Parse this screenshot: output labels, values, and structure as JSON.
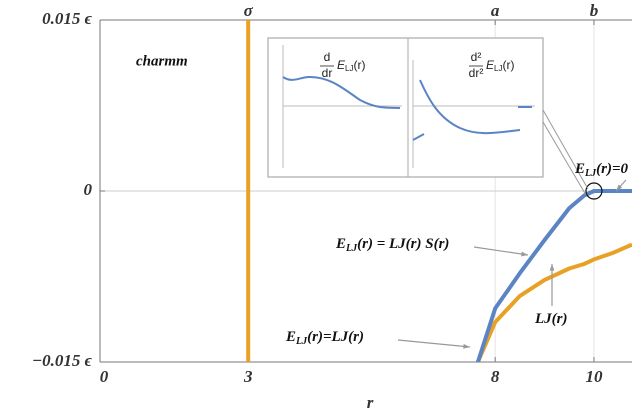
{
  "chart_data": {
    "type": "line",
    "x_label": "r",
    "xlim": [
      0,
      10.77
    ],
    "ylim": [
      -0.015,
      0.015
    ],
    "xticks": [
      0,
      3,
      8,
      10
    ],
    "yticks": [
      {
        "value": -0.015,
        "label": "−0.015 ϵ"
      },
      0,
      {
        "value": 0.015,
        "label": "0.015 ϵ"
      }
    ],
    "top_ticks": [
      {
        "value": 3,
        "label": "σ"
      },
      {
        "value": 8,
        "label": "a"
      },
      {
        "value": 10,
        "label": "b"
      }
    ],
    "grid": true,
    "vline": 3,
    "vline_color": "#e8a124",
    "x": [
      7.65,
      8,
      8.5,
      9,
      9.5,
      9.8,
      10,
      10.4,
      10.77
    ],
    "series": [
      {
        "color": "#e8a124",
        "values": [
          -0.015,
          -0.0115,
          -0.0092,
          -0.0078,
          -0.0068,
          -0.0064,
          -0.006,
          -0.0054,
          -0.0047
        ]
      },
      {
        "color": "#5b84c4",
        "values": [
          -0.015,
          -0.0103,
          -0.0072,
          -0.0043,
          -0.0015,
          -0.0004,
          0,
          0,
          0
        ]
      }
    ],
    "label": "charmm",
    "annotations": [
      {
        "base": "E",
        "sub": "LJ",
        "rest": "(r) = LJ(r) S(r)"
      },
      {
        "base": "E",
        "sub": "LJ",
        "rest": "(r)=LJ(r)"
      },
      {
        "base": "LJ(r)"
      },
      {
        "base": "E",
        "sub": "LJ",
        "rest": "(r)=0"
      }
    ],
    "inset": [
      {
        "num": "d",
        "den": "dr",
        "base": "E",
        "sub": "LJ",
        "rest": "(r)"
      },
      {
        "num": "d²",
        "den": "dr²",
        "base": "E",
        "sub": "LJ",
        "rest": "(r)"
      }
    ]
  }
}
